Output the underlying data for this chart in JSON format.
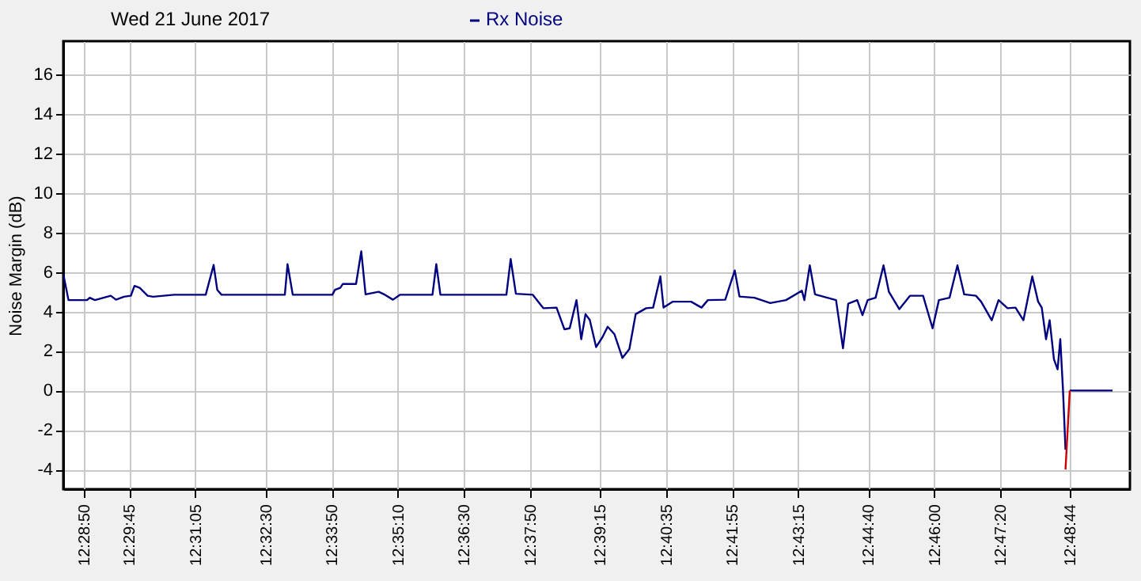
{
  "chart_data": {
    "type": "line",
    "title": "Wed 21 June 2017",
    "ylabel": "Noise Margin (dB)",
    "xlim": [
      12.47364,
      12.83245
    ],
    "ylim": [
      -5,
      17.7
    ],
    "xticks": [
      {
        "value": 12.48056,
        "label": "12:28:50"
      },
      {
        "value": 12.49583,
        "label": "12:29:45"
      },
      {
        "value": 12.51806,
        "label": "12:31:05"
      },
      {
        "value": 12.54167,
        "label": "12:32:30"
      },
      {
        "value": 12.56389,
        "label": "12:33:50"
      },
      {
        "value": 12.58611,
        "label": "12:35:10"
      },
      {
        "value": 12.60833,
        "label": "12:36:30"
      },
      {
        "value": 12.63056,
        "label": "12:37:50"
      },
      {
        "value": 12.65417,
        "label": "12:39:15"
      },
      {
        "value": 12.67639,
        "label": "12:40:35"
      },
      {
        "value": 12.69861,
        "label": "12:41:55"
      },
      {
        "value": 12.72083,
        "label": "12:43:15"
      },
      {
        "value": 12.74444,
        "label": "12:44:40"
      },
      {
        "value": 12.76667,
        "label": "12:46:00"
      },
      {
        "value": 12.78889,
        "label": "12:47:20"
      },
      {
        "value": 12.81222,
        "label": "12:48:44"
      }
    ],
    "yticks": [
      -4,
      -2,
      0,
      2,
      4,
      6,
      8,
      10,
      12,
      14,
      16
    ],
    "grid": true,
    "legend": "top",
    "marker": "none",
    "line_style": "solid",
    "series": [
      {
        "name": "Rx Noise",
        "color": "#000080",
        "x": [
          12.47364,
          12.47539,
          12.48162,
          12.48253,
          12.48428,
          12.48961,
          12.49136,
          12.49402,
          12.49637,
          12.49759,
          12.49935,
          12.50201,
          12.50382,
          12.5109,
          12.52155,
          12.52421,
          12.52543,
          12.52687,
          12.54817,
          12.54907,
          12.55083,
          12.56414,
          12.56504,
          12.5668,
          12.5677,
          12.57212,
          12.57388,
          12.57532,
          12.57973,
          12.58186,
          12.58453,
          12.58687,
          12.59783,
          12.59911,
          12.6005,
          12.6227,
          12.62413,
          12.62589,
          12.63159,
          12.6351,
          12.63957,
          12.64223,
          12.64399,
          12.64628,
          12.64788,
          12.64931,
          12.65075,
          12.65288,
          12.65501,
          12.65677,
          12.65906,
          12.66172,
          12.66406,
          12.66619,
          12.6697,
          12.67205,
          12.67449,
          12.67556,
          12.67859,
          12.68482,
          12.68834,
          12.69047,
          12.69632,
          12.69952,
          12.70111,
          12.70612,
          12.71144,
          12.71676,
          12.72209,
          12.72294,
          12.72475,
          12.72651,
          12.73359,
          12.73593,
          12.73769,
          12.74072,
          12.74248,
          12.74423,
          12.7469,
          12.74956,
          12.75137,
          12.75488,
          12.75845,
          12.76287,
          12.76606,
          12.76819,
          12.77176,
          12.77442,
          12.77671,
          12.78065,
          12.7824,
          12.78597,
          12.78826,
          12.79129,
          12.79396,
          12.79662,
          12.7996,
          12.80157,
          12.80279,
          12.80423,
          12.80545,
          12.80689,
          12.80812,
          12.80902,
          12.80993,
          12.81078,
          12.81147,
          12.81222,
          12.82659
        ],
        "values": [
          5.9,
          4.58,
          4.58,
          4.7,
          4.58,
          4.8,
          4.6,
          4.75,
          4.8,
          5.3,
          5.2,
          4.8,
          4.75,
          4.85,
          4.85,
          6.36,
          5.1,
          4.85,
          4.85,
          6.4,
          4.85,
          4.85,
          5.1,
          5.2,
          5.4,
          5.4,
          7.05,
          4.87,
          5.0,
          4.85,
          4.6,
          4.85,
          4.85,
          6.4,
          4.85,
          4.85,
          6.66,
          4.9,
          4.85,
          4.17,
          4.2,
          3.1,
          3.15,
          4.58,
          2.6,
          3.87,
          3.57,
          2.2,
          2.7,
          3.23,
          2.85,
          1.65,
          2.1,
          3.87,
          4.17,
          4.2,
          5.78,
          4.2,
          4.5,
          4.5,
          4.2,
          4.58,
          4.6,
          6.08,
          4.76,
          4.7,
          4.43,
          4.58,
          5.06,
          4.58,
          6.34,
          4.87,
          4.58,
          2.14,
          4.4,
          4.58,
          3.82,
          4.58,
          4.7,
          6.34,
          5.0,
          4.12,
          4.8,
          4.8,
          3.15,
          4.58,
          4.7,
          6.34,
          4.87,
          4.8,
          4.5,
          3.56,
          4.58,
          4.17,
          4.2,
          3.56,
          5.78,
          4.5,
          4.2,
          2.6,
          3.56,
          1.58,
          1.07,
          2.6,
          0.05,
          -3.0,
          null,
          0,
          0
        ]
      },
      {
        "color": "#cc0000",
        "x": [
          12.81078,
          12.81222
        ],
        "values": [
          -4.0,
          0
        ]
      }
    ]
  }
}
